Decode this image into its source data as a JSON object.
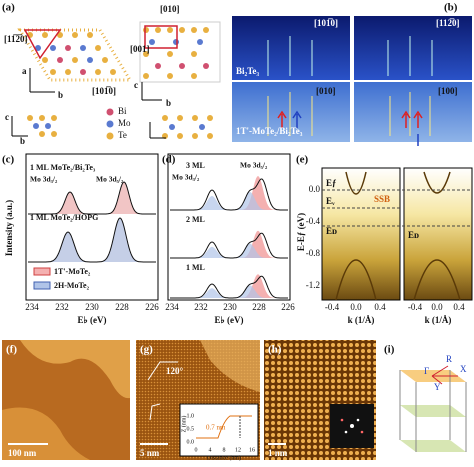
{
  "panel_a": {
    "label": "(a)",
    "dir_1": "[11̅2̅0]",
    "dir_2": "[101̅0]",
    "dir_3": "[010]",
    "dir_4": "[001]",
    "axis_a": "a",
    "axis_b": "b",
    "axis_c_1": "c",
    "axis_b_2": "b",
    "axis_c_2": "c",
    "axis_b_3": "b",
    "legend": [
      "Bi",
      "Mo",
      "Te"
    ]
  },
  "panel_b": {
    "label": "(b)",
    "dir_1": "[101̅0]",
    "dir_2": "[112̅0]",
    "dir_3": "[010]",
    "dir_4": "[100]",
    "sample_1": "Bi₂Te₃",
    "sample_2": "1T'-MoTe₂/Bi₂Te₃"
  },
  "panel_c": {
    "label": "(c)",
    "spectrum_1": "1 ML MoTe₂/Bi₂Te₃",
    "spectrum_2": "1 ML MoTe₂/HOPG",
    "peak_1": "Mo 3d₃/₂",
    "peak_2": "Mo 3d₅/₂",
    "ylabel": "Intensity (a.u.)",
    "xlabel": "E♭ (eV)",
    "xticks": [
      "234",
      "232",
      "230",
      "228",
      "226"
    ],
    "legend": [
      "1T'-MoTe₂",
      "2H-MoTe₂"
    ]
  },
  "panel_d": {
    "label": "(d)",
    "spectrum_1": "3 ML",
    "spectrum_2": "2 ML",
    "spectrum_3": "1 ML",
    "peak_1": "Mo 3d₃/₂",
    "peak_2": "Mo 3d₅/₂",
    "xlabel": "E♭ (eV)",
    "xticks": [
      "234",
      "232",
      "230",
      "228",
      "226"
    ]
  },
  "panel_e": {
    "label": "(e)",
    "ylabel": "E-Eƒ (eV)",
    "yticks": [
      "0.0",
      "-0.4",
      "-0.8",
      "-1.2"
    ],
    "xticks_left": [
      "-0.4",
      "0.0",
      "0.4"
    ],
    "xticks_right": [
      "-0.4",
      "0.0",
      "0.4"
    ],
    "xlabel_left": "k (1/Å)",
    "xlabel_right": "k (1/Å)",
    "ef": "Eƒ",
    "ev": "Eᵥ",
    "ed": "Eᴅ",
    "ssb": "SSB",
    "ed_right": "Eᴅ"
  },
  "panel_f": {
    "label": "(f)",
    "scale": "100 nm"
  },
  "panel_g": {
    "label": "(g)",
    "angle": "120°",
    "scale": "5 nm",
    "inset_ylabel": "Z (nm)",
    "inset_xlabel": "Distance (nm)",
    "step": "0.7 nm",
    "inset_xticks": [
      "0",
      "4",
      "8",
      "12",
      "16"
    ],
    "inset_yticks": [
      "0.0",
      "0.5",
      "1.0"
    ]
  },
  "panel_h": {
    "label": "(h)",
    "scale": "1 nm"
  },
  "panel_i": {
    "label": "(i)",
    "gamma": "Γ",
    "r": "R",
    "x": "X",
    "y": "Y"
  }
}
